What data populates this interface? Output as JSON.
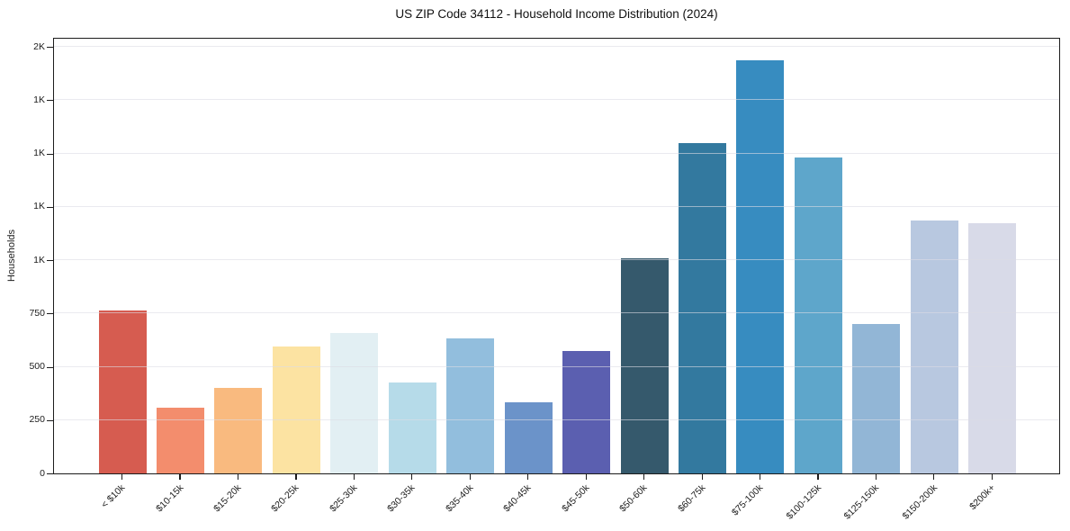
{
  "chart_data": {
    "type": "bar",
    "title": "US ZIP Code 34112 - Household Income Distribution (2024)",
    "xlabel": "",
    "ylabel": "Households",
    "categories": [
      "< $10k",
      "$10-15k",
      "$15-20k",
      "$20-25k",
      "$25-30k",
      "$30-35k",
      "$35-40k",
      "$40-45k",
      "$45-50k",
      "$50-60k",
      "$60-75k",
      "$75-100k",
      "$100-125k",
      "$125-150k",
      "$150-200k",
      "$200k+"
    ],
    "values": [
      765,
      310,
      400,
      595,
      660,
      425,
      635,
      335,
      575,
      1010,
      1550,
      1935,
      1480,
      700,
      1185,
      1175
    ],
    "bar_colors": [
      "#d65c50",
      "#f38d6d",
      "#f9ba7f",
      "#fce3a2",
      "#e2eff3",
      "#b6dbe9",
      "#92bedd",
      "#6b93c9",
      "#5b5fb0",
      "#35596c",
      "#33799f",
      "#378cc0",
      "#5ea6cb",
      "#92b6d6",
      "#b8c8e0",
      "#d8dae8"
    ],
    "ylim": [
      0,
      2045
    ],
    "yticks": [
      {
        "value": 0,
        "label": "0"
      },
      {
        "value": 250,
        "label": "250"
      },
      {
        "value": 500,
        "label": "500"
      },
      {
        "value": 750,
        "label": "750"
      },
      {
        "value": 1000,
        "label": "1K"
      },
      {
        "value": 1250,
        "label": "1K"
      },
      {
        "value": 1500,
        "label": "1K"
      },
      {
        "value": 1750,
        "label": "1K"
      },
      {
        "value": 2000,
        "label": "2K"
      }
    ],
    "x_tick_rotation": 45,
    "grid": true,
    "grid_axis": "y",
    "legend": "none",
    "colors": {
      "background": "#ffffff",
      "spine": "#1c1c1c",
      "gridline": "#e8e8ec",
      "text": "#1c1c1c"
    }
  }
}
